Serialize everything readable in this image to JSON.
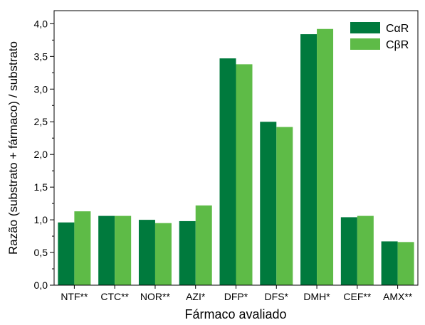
{
  "chart_data": {
    "type": "bar",
    "title": "",
    "xlabel": "Fármaco avaliado",
    "ylabel": "Razão (substrato + fármaco) / substrato",
    "categories": [
      "NTF**",
      "CTC**",
      "NOR**",
      "AZI*",
      "DFP*",
      "DFS*",
      "DMH*",
      "CEF**",
      "AMX**"
    ],
    "series": [
      {
        "name": "CαR",
        "color": "#007a3d",
        "values": [
          0.96,
          1.06,
          1.0,
          0.98,
          3.47,
          2.5,
          3.84,
          1.04,
          0.67
        ]
      },
      {
        "name": "CβR",
        "color": "#5ebb47",
        "values": [
          1.13,
          1.06,
          0.95,
          1.22,
          3.38,
          2.42,
          3.92,
          1.06,
          0.66
        ]
      }
    ],
    "ylim": [
      0,
      4.2
    ],
    "yticks": [
      "0,0",
      "0,5",
      "1,0",
      "1,5",
      "2,0",
      "2,5",
      "3,0",
      "3,5",
      "4,0"
    ],
    "grid": false,
    "legend": "top-right"
  }
}
